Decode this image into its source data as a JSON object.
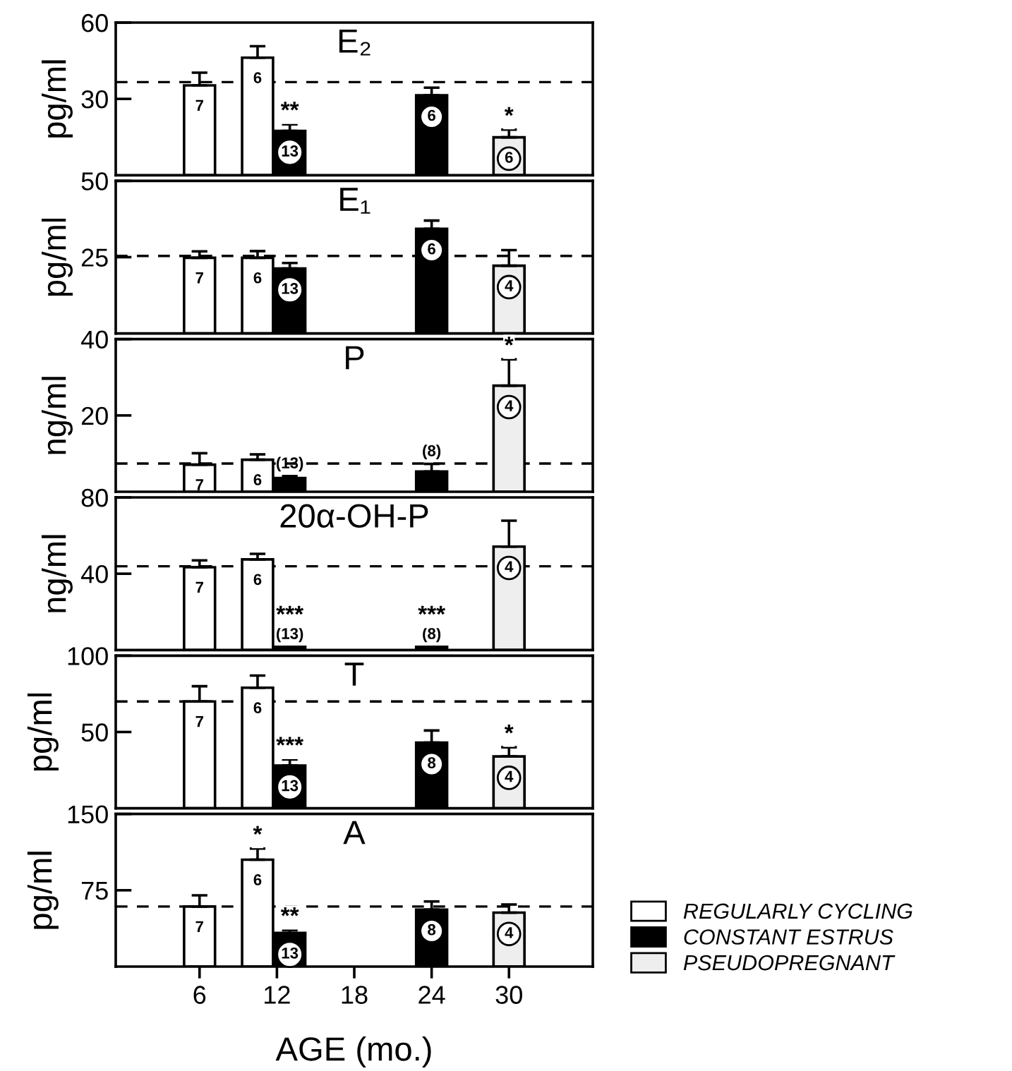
{
  "chart_data": [
    {
      "type": "bar",
      "title": "E₂",
      "ylabel": "pg/ml",
      "xlim": [
        -0.5,
        36.5
      ],
      "ylim": [
        0,
        60
      ],
      "yticks": [
        30,
        60
      ],
      "tick_labels": "y",
      "legend": false,
      "series": [
        {
          "color": "#ffffff",
          "x": [
            6,
            10.5
          ],
          "values": [
            35.3,
            46.2
          ],
          "errors": [
            [
              35.3,
              40.3
            ],
            [
              46.2,
              50.7
            ]
          ]
        },
        {
          "color": "#000000",
          "x": [
            13,
            24
          ],
          "values": [
            17.4,
            31.4
          ],
          "errors": [
            [
              17.4,
              20
            ],
            [
              31.4,
              34.4
            ]
          ]
        },
        {
          "color": "#eeeeee",
          "x": [
            30
          ],
          "values": [
            14.9
          ],
          "errors": [
            [
              14.9,
              17.9
            ]
          ]
        }
      ],
      "ref_lines": [
        {
          "axis": "y",
          "value": 36.6,
          "line_style": "dashed"
        }
      ],
      "annotations": [
        "7",
        "6",
        "13",
        "6",
        "6",
        {
          "text": "**",
          "x": 13,
          "y": 20
        },
        {
          "text": "*",
          "x": 30,
          "y": 17.9
        }
      ]
    },
    {
      "type": "bar",
      "title": "E₁",
      "ylabel": "pg/ml",
      "xlim": [
        -0.5,
        36.5
      ],
      "ylim": [
        0,
        50
      ],
      "yticks": [
        25,
        50
      ],
      "tick_labels": "y",
      "legend": false,
      "series": [
        {
          "color": "#ffffff",
          "x": [
            6,
            10.5
          ],
          "values": [
            24.8,
            24.8
          ],
          "errors": [
            [
              24.8,
              26.9
            ],
            [
              24.8,
              27
            ]
          ]
        },
        {
          "color": "#000000",
          "x": [
            13,
            24
          ],
          "values": [
            21.3,
            34.3
          ],
          "errors": [
            [
              21.3,
              23.1
            ],
            [
              34.3,
              37
            ]
          ]
        },
        {
          "color": "#eeeeee",
          "x": [
            30
          ],
          "values": [
            22.2
          ],
          "errors": [
            [
              22.2,
              27.3
            ]
          ]
        }
      ],
      "ref_lines": [
        {
          "axis": "y",
          "value": 25.4,
          "line_style": "dashed"
        }
      ],
      "annotations": [
        "7",
        "6",
        "13",
        "6",
        "4"
      ]
    },
    {
      "type": "bar",
      "title": "P",
      "ylabel": "ng/ml",
      "xlim": [
        -0.5,
        36.5
      ],
      "ylim": [
        0,
        40
      ],
      "yticks": [
        20,
        40
      ],
      "tick_labels": "y",
      "legend": false,
      "series": [
        {
          "color": "#ffffff",
          "x": [
            6,
            10.5
          ],
          "values": [
            7.1,
            8.4
          ],
          "errors": [
            [
              7.1,
              10.1
            ],
            [
              8.4,
              9.8
            ]
          ]
        },
        {
          "color": "#000000",
          "x": [
            13,
            24
          ],
          "values": [
            3.6,
            5.3
          ],
          "errors": [
            [
              3.6,
              4.1
            ],
            [
              5.3,
              7.3
            ]
          ]
        },
        {
          "color": "#eeeeee",
          "x": [
            30
          ],
          "values": [
            27.8
          ],
          "errors": [
            [
              27.8,
              34.7
            ]
          ]
        }
      ],
      "ref_lines": [
        {
          "axis": "y",
          "value": 7.4,
          "line_style": "dashed"
        }
      ],
      "annotations": [
        "7",
        "6",
        "(13)",
        "(8)",
        "4",
        {
          "text": "*",
          "x": 30,
          "y": 34.7
        }
      ]
    },
    {
      "type": "bar",
      "title": "20α-OH-P",
      "ylabel": "ng/ml",
      "xlim": [
        -0.5,
        36.5
      ],
      "ylim": [
        0,
        80
      ],
      "yticks": [
        40,
        80
      ],
      "tick_labels": "y",
      "legend": false,
      "series": [
        {
          "color": "#ffffff",
          "x": [
            6,
            10.5
          ],
          "values": [
            43.4,
            47.5
          ],
          "errors": [
            [
              43.4,
              47
            ],
            [
              47.5,
              50.4
            ]
          ]
        },
        {
          "color": "#000000",
          "x": [
            13,
            24
          ],
          "values": [
            1.7,
            1.7
          ]
        },
        {
          "color": "#eeeeee",
          "x": [
            30
          ],
          "values": [
            54.2
          ],
          "errors": [
            [
              54.2,
              67.8
            ]
          ]
        }
      ],
      "ref_lines": [
        {
          "axis": "y",
          "value": 43.9,
          "line_style": "dashed"
        }
      ],
      "annotations": [
        "7",
        "6",
        "(13)",
        "(8)",
        "4",
        {
          "text": "***",
          "x": 13,
          "y": 1.7
        },
        {
          "text": "***",
          "x": 24,
          "y": 1.7
        }
      ]
    },
    {
      "type": "bar",
      "title": "T",
      "ylabel": "pg/ml",
      "xlim": [
        -0.5,
        36.5
      ],
      "ylim": [
        0,
        100
      ],
      "yticks": [
        50,
        100
      ],
      "tick_labels": "y",
      "legend": false,
      "series": [
        {
          "color": "#ffffff",
          "x": [
            6,
            10.5
          ],
          "values": [
            70,
            79
          ],
          "errors": [
            [
              70,
              80
            ],
            [
              79,
              87
            ]
          ]
        },
        {
          "color": "#000000",
          "x": [
            13,
            24
          ],
          "values": [
            28,
            43
          ],
          "errors": [
            [
              28,
              32
            ],
            [
              43,
              51
            ]
          ]
        },
        {
          "color": "#eeeeee",
          "x": [
            30
          ],
          "values": [
            34
          ],
          "errors": [
            [
              34,
              40
            ]
          ]
        }
      ],
      "ref_lines": [
        {
          "axis": "y",
          "value": 70,
          "line_style": "dashed"
        }
      ],
      "annotations": [
        "7",
        "6",
        "13",
        "8",
        "4",
        {
          "text": "***",
          "x": 13,
          "y": 32
        },
        {
          "text": "*",
          "x": 30,
          "y": 40
        }
      ]
    },
    {
      "type": "bar",
      "title": "A",
      "ylabel": "pg/ml",
      "xlabel": "AGE (mo.)",
      "xlim": [
        -0.5,
        36.5
      ],
      "xticks": [
        6,
        12,
        18,
        24,
        30
      ],
      "ylim": [
        0,
        150
      ],
      "yticks": [
        75,
        150
      ],
      "legend": "right",
      "series": [
        {
          "name": "REGULARLY CYCLING",
          "color": "#ffffff",
          "x": [
            6,
            10.5
          ],
          "values": [
            59,
            105
          ],
          "errors": [
            [
              59,
              70
            ],
            [
              105,
              116
            ]
          ]
        },
        {
          "name": "CONSTANT ESTRUS",
          "color": "#000000",
          "x": [
            13,
            24
          ],
          "values": [
            33,
            56
          ],
          "errors": [
            [
              33,
              36
            ],
            [
              56,
              64
            ]
          ]
        },
        {
          "name": "PSEUDOPREGNANT",
          "color": "#eeeeee",
          "x": [
            30
          ],
          "values": [
            53
          ],
          "errors": [
            [
              53,
              61
            ]
          ]
        }
      ],
      "ref_lines": [
        {
          "axis": "y",
          "value": 59,
          "line_style": "dashed"
        }
      ],
      "annotations": [
        "7",
        "6",
        "13",
        "8",
        "4",
        {
          "text": "*",
          "x": 10.5,
          "y": 116
        },
        {
          "text": "**",
          "x": 13,
          "y": 36
        }
      ]
    }
  ]
}
